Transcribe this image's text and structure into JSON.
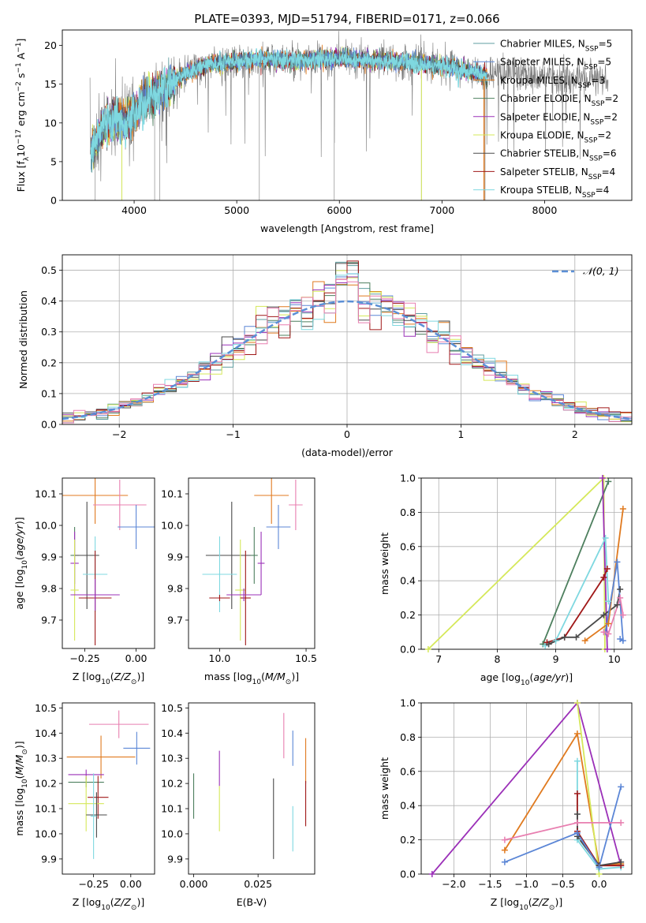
{
  "figure": {
    "title": "PLATE=0393, MJD=51794, FIBERID=0171, z=0.066"
  },
  "colors": {
    "Chabrier MILES": "#5f9ea0",
    "Salpeter MILES": "#5b86d6",
    "Kroupa MILES": "#e07a1f",
    "Chabrier ELODIE": "#4d7f5e",
    "Salpeter ELODIE": "#9b30b8",
    "Kroupa ELODIE": "#d5e85a",
    "Chabrier STELIB": "#4a4a4a",
    "Salpeter STELIB": "#a01818",
    "Kroupa STELIB": "#7fd8e0",
    "pink": "#e87fb0",
    "normal": "#5b8fd6",
    "grid": "#b0b0b0"
  },
  "chart_data": [
    {
      "id": "spectrum",
      "type": "line",
      "xlabel": "wavelength [Angstrom, rest frame]",
      "ylabel": "Flux [f",
      "xlim": [
        3300,
        8850
      ],
      "ylim": [
        0,
        22
      ],
      "xticks": [
        4000,
        5000,
        6000,
        7000,
        8000
      ],
      "yticks": [
        0,
        5,
        10,
        15,
        20
      ],
      "grid": false,
      "legend_position": "top-right",
      "legend": [
        {
          "name": "Chabrier MILES",
          "nssp": "5"
        },
        {
          "name": "Salpeter MILES",
          "nssp": "5"
        },
        {
          "name": "Kroupa MILES",
          "nssp": "3"
        },
        {
          "name": "Chabrier ELODIE",
          "nssp": "2"
        },
        {
          "name": "Salpeter ELODIE",
          "nssp": "2"
        },
        {
          "name": "Kroupa ELODIE",
          "nssp": "2"
        },
        {
          "name": "Chabrier STELIB",
          "nssp": "6"
        },
        {
          "name": "Salpeter STELIB",
          "nssp": "4"
        },
        {
          "name": "Kroupa STELIB",
          "nssp": "4"
        }
      ],
      "continuum": {
        "x": [
          3580,
          3700,
          3800,
          3900,
          4000,
          4100,
          4200,
          4300,
          4400,
          4600,
          4800,
          5000,
          5200,
          5500,
          6000,
          6500,
          7000,
          7400
        ],
        "y": [
          6.5,
          9.5,
          10.5,
          10.0,
          11.2,
          13.0,
          13.5,
          14.5,
          15.5,
          17.0,
          17.8,
          17.8,
          18.3,
          18.0,
          18.3,
          18.0,
          17.4,
          16.2
        ]
      },
      "data_extent": [
        3570,
        8620
      ]
    },
    {
      "id": "residuals",
      "type": "line",
      "xlabel": "(data-model)/error",
      "ylabel": "Normed distribution",
      "xlim": [
        -2.5,
        2.5
      ],
      "ylim": [
        0,
        0.55
      ],
      "xticks": [
        -2,
        -1,
        0,
        1,
        2
      ],
      "yticks": [
        0.0,
        0.1,
        0.2,
        0.3,
        0.4,
        0.5
      ],
      "grid": true,
      "legend_position": "top-right",
      "normal_label": "𝒩(0, 1)",
      "normal": {
        "mu": 0,
        "sigma": 1
      }
    },
    {
      "id": "age_vs_z",
      "type": "scatter",
      "xlabel": "Z [log",
      "ylabel": "age  [log",
      "xlim": [
        -0.36,
        0.09
      ],
      "ylim": [
        9.61,
        10.15
      ],
      "xticks": [
        -0.25,
        0.0
      ],
      "yticks": [
        9.7,
        9.8,
        9.9,
        10.0,
        10.1
      ],
      "points": [
        {
          "c": "Kroupa MILES",
          "x": -0.2,
          "y": 10.095,
          "xe": 0.16,
          "ye": 0.09
        },
        {
          "c": "pink",
          "x": -0.08,
          "y": 10.065,
          "xe": 0.13,
          "ye": 0.08
        },
        {
          "c": "Salpeter MILES",
          "x": 0.0,
          "y": 9.995,
          "xe": 0.09,
          "ye": 0.07
        },
        {
          "c": "Chabrier ELODIE",
          "x": -0.3,
          "y": 9.905,
          "xe": 0.02,
          "ye": 0.09
        },
        {
          "c": "Chabrier STELIB",
          "x": -0.24,
          "y": 9.905,
          "xe": 0.06,
          "ye": 0.17
        },
        {
          "c": "Salpeter ELODIE",
          "x": -0.3,
          "y": 9.88,
          "xe": 0.02,
          "ye": 0.1
        },
        {
          "c": "Kroupa ELODIE",
          "x": -0.3,
          "y": 9.795,
          "xe": 0.02,
          "ye": 0.16
        },
        {
          "c": "Kroupa STELIB",
          "x": -0.2,
          "y": 9.845,
          "xe": 0.06,
          "ye": 0.12
        },
        {
          "c": "Salpeter STELIB",
          "x": -0.2,
          "y": 9.77,
          "xe": 0.08,
          "ye": 0.15
        },
        {
          "c": "Salpeter ELODIE",
          "x": -0.2,
          "y": 9.78,
          "xe": 0.12,
          "ye": 0.05
        }
      ]
    },
    {
      "id": "age_vs_mass",
      "type": "scatter",
      "xlabel": "mass [log",
      "ylabel": "",
      "xlim": [
        9.82,
        10.55
      ],
      "ylim": [
        9.61,
        10.15
      ],
      "xticks": [
        10.0,
        10.5
      ],
      "yticks": [
        9.7,
        9.8,
        9.9,
        10.0,
        10.1
      ],
      "points": [
        {
          "c": "Kroupa MILES",
          "x": 10.3,
          "y": 10.095,
          "xe": 0.1,
          "ye": 0.09
        },
        {
          "c": "pink",
          "x": 10.44,
          "y": 10.065,
          "xe": 0.04,
          "ye": 0.08
        },
        {
          "c": "Salpeter MILES",
          "x": 10.34,
          "y": 9.995,
          "xe": 0.07,
          "ye": 0.07
        },
        {
          "c": "Chabrier STELIB",
          "x": 10.07,
          "y": 9.905,
          "xe": 0.15,
          "ye": 0.17
        },
        {
          "c": "Chabrier ELODIE",
          "x": 10.2,
          "y": 9.905,
          "xe": 0.02,
          "ye": 0.09
        },
        {
          "c": "Salpeter ELODIE",
          "x": 10.24,
          "y": 9.88,
          "xe": 0.02,
          "ye": 0.1
        },
        {
          "c": "Kroupa STELIB",
          "x": 10.0,
          "y": 9.845,
          "xe": 0.1,
          "ye": 0.12
        },
        {
          "c": "Kroupa ELODIE",
          "x": 10.12,
          "y": 9.795,
          "xe": 0.03,
          "ye": 0.16
        },
        {
          "c": "Salpeter STELIB",
          "x": 10.15,
          "y": 9.77,
          "xe": 0.03,
          "ye": 0.15
        },
        {
          "c": "Salpeter ELODIE",
          "x": 10.14,
          "y": 9.78,
          "xe": 0.1,
          "ye": 0.02
        },
        {
          "c": "Salpeter STELIB",
          "x": 10.0,
          "y": 9.77,
          "xe": 0.06,
          "ye": 0.01
        }
      ]
    },
    {
      "id": "massweight_vs_age",
      "type": "line",
      "xlabel": "age  [log",
      "ylabel": "mass weight",
      "xlim": [
        6.7,
        10.3
      ],
      "ylim": [
        0,
        1
      ],
      "xticks": [
        7,
        8,
        9,
        10
      ],
      "yticks": [
        0.0,
        0.2,
        0.4,
        0.6,
        0.8,
        1.0
      ],
      "grid": true,
      "series": [
        {
          "c": "Kroupa ELODIE",
          "x": [
            6.82,
            9.82,
            9.84
          ],
          "y": [
            0.0,
            1.0,
            0.0
          ]
        },
        {
          "c": "Chabrier ELODIE",
          "x": [
            8.78,
            9.9
          ],
          "y": [
            0.03,
            0.98
          ]
        },
        {
          "c": "Salpeter ELODIE",
          "x": [
            9.8,
            9.88
          ],
          "y": [
            1.0,
            0.0
          ]
        },
        {
          "c": "Kroupa STELIB",
          "x": [
            8.82,
            9.0,
            9.85,
            9.9
          ],
          "y": [
            0.02,
            0.05,
            0.65,
            0.28
          ]
        },
        {
          "c": "Salpeter STELIB",
          "x": [
            8.85,
            9.15,
            9.82,
            9.88
          ],
          "y": [
            0.04,
            0.07,
            0.42,
            0.47
          ]
        },
        {
          "c": "Chabrier STELIB",
          "x": [
            8.88,
            9.15,
            9.35,
            9.82,
            10.05,
            10.1
          ],
          "y": [
            0.03,
            0.07,
            0.07,
            0.2,
            0.26,
            0.35
          ]
        },
        {
          "c": "Kroupa MILES",
          "x": [
            9.5,
            9.9,
            10.15
          ],
          "y": [
            0.05,
            0.15,
            0.82
          ]
        },
        {
          "c": "Salpeter MILES",
          "x": [
            9.85,
            10.05,
            10.15,
            10.1
          ],
          "y": [
            0.1,
            0.51,
            0.05,
            0.06
          ]
        },
        {
          "c": "pink",
          "x": [
            9.82,
            9.9,
            10.1,
            10.15
          ],
          "y": [
            0.1,
            0.09,
            0.3,
            0.2
          ]
        }
      ]
    },
    {
      "id": "mass_vs_z",
      "type": "scatter",
      "xlabel": "Z [log",
      "ylabel": "mass [log",
      "xlim": [
        -0.46,
        0.16
      ],
      "ylim": [
        9.84,
        10.52
      ],
      "xticks": [
        -0.25,
        0.0
      ],
      "yticks": [
        9.9,
        10.0,
        10.1,
        10.2,
        10.3,
        10.4,
        10.5
      ],
      "points": [
        {
          "c": "pink",
          "x": -0.08,
          "y": 10.435,
          "xe": 0.2,
          "ye": 0.055
        },
        {
          "c": "Salpeter MILES",
          "x": 0.04,
          "y": 10.34,
          "xe": 0.09,
          "ye": 0.065
        },
        {
          "c": "Kroupa MILES",
          "x": -0.2,
          "y": 10.305,
          "xe": 0.23,
          "ye": 0.085
        },
        {
          "c": "Salpeter ELODIE",
          "x": -0.3,
          "y": 10.235,
          "xe": 0.12,
          "ye": 0.02
        },
        {
          "c": "Chabrier ELODIE",
          "x": -0.3,
          "y": 10.205,
          "xe": 0.12,
          "ye": 0.02
        },
        {
          "c": "Salpeter STELIB",
          "x": -0.22,
          "y": 10.145,
          "xe": 0.07,
          "ye": 0.085
        },
        {
          "c": "Kroupa ELODIE",
          "x": -0.3,
          "y": 10.12,
          "xe": 0.12,
          "ye": 0.11
        },
        {
          "c": "Chabrier STELIB",
          "x": -0.23,
          "y": 10.075,
          "xe": 0.07,
          "ye": 0.09
        },
        {
          "c": "Kroupa STELIB",
          "x": -0.25,
          "y": 10.07,
          "xe": 0.02,
          "ye": 0.17
        }
      ]
    },
    {
      "id": "mass_vs_ebv",
      "type": "scatter",
      "xlabel": "E(B-V)",
      "ylabel": "",
      "xlim": [
        -0.002,
        0.047
      ],
      "ylim": [
        9.84,
        10.52
      ],
      "xticks": [
        0.0,
        0.025
      ],
      "xtick_labels": [
        "0.000",
        "0.025"
      ],
      "yticks": [
        9.9,
        10.0,
        10.1,
        10.2,
        10.3,
        10.4,
        10.5
      ],
      "points": [
        {
          "c": "Chabrier ELODIE",
          "x": 0.0,
          "y": 10.15,
          "xe": 0,
          "ye": 0.09
        },
        {
          "c": "Salpeter ELODIE",
          "x": 0.01,
          "y": 10.26,
          "xe": 0,
          "ye": 0.07
        },
        {
          "c": "Kroupa ELODIE",
          "x": 0.01,
          "y": 10.1,
          "xe": 0,
          "ye": 0.09
        },
        {
          "c": "Chabrier STELIB",
          "x": 0.031,
          "y": 10.06,
          "xe": 0,
          "ye": 0.16
        },
        {
          "c": "pink",
          "x": 0.035,
          "y": 10.39,
          "xe": 0,
          "ye": 0.09
        },
        {
          "c": "Salpeter MILES",
          "x": 0.0385,
          "y": 10.34,
          "xe": 0,
          "ye": 0.07
        },
        {
          "c": "Kroupa STELIB",
          "x": 0.0385,
          "y": 10.02,
          "xe": 0,
          "ye": 0.09
        },
        {
          "c": "Kroupa MILES",
          "x": 0.0435,
          "y": 10.29,
          "xe": 0,
          "ye": 0.09
        },
        {
          "c": "Salpeter STELIB",
          "x": 0.0435,
          "y": 10.12,
          "xe": 0,
          "ye": 0.09
        }
      ]
    },
    {
      "id": "massweight_vs_z",
      "type": "line",
      "xlabel": "Z [log",
      "ylabel": "mass weight",
      "xlim": [
        -2.45,
        0.45
      ],
      "ylim": [
        0,
        1
      ],
      "xticks": [
        -2.0,
        -1.5,
        -1.0,
        -0.5,
        0.0
      ],
      "yticks": [
        0.0,
        0.2,
        0.4,
        0.6,
        0.8,
        1.0
      ],
      "grid": true,
      "series": [
        {
          "c": "Salpeter ELODIE",
          "x": [
            -2.3,
            -0.3,
            0.3
          ],
          "y": [
            0.0,
            1.0,
            0.05
          ]
        },
        {
          "c": "Kroupa MILES",
          "x": [
            -1.3,
            -0.3,
            0.0,
            0.3
          ],
          "y": [
            0.14,
            0.82,
            0.05,
            0.06
          ]
        },
        {
          "c": "Kroupa ELODIE",
          "x": [
            -0.3,
            0.0
          ],
          "y": [
            1.0,
            0.0
          ]
        },
        {
          "c": "Kroupa STELIB",
          "x": [
            -0.3,
            -0.3,
            0.0,
            0.3
          ],
          "y": [
            0.66,
            0.2,
            0.03,
            0.04
          ]
        },
        {
          "c": "Salpeter STELIB",
          "x": [
            -0.3,
            -0.3,
            0.0,
            0.3
          ],
          "y": [
            0.47,
            0.25,
            0.05,
            0.05
          ]
        },
        {
          "c": "Chabrier STELIB",
          "x": [
            -0.3,
            -0.3,
            0.0,
            0.3
          ],
          "y": [
            0.35,
            0.22,
            0.05,
            0.07
          ]
        },
        {
          "c": "Salpeter MILES",
          "x": [
            -1.3,
            -0.3,
            0.0,
            0.3
          ],
          "y": [
            0.07,
            0.24,
            0.04,
            0.51
          ]
        },
        {
          "c": "pink",
          "x": [
            -1.3,
            -0.3,
            0.3
          ],
          "y": [
            0.2,
            0.3,
            0.3
          ]
        }
      ]
    }
  ]
}
